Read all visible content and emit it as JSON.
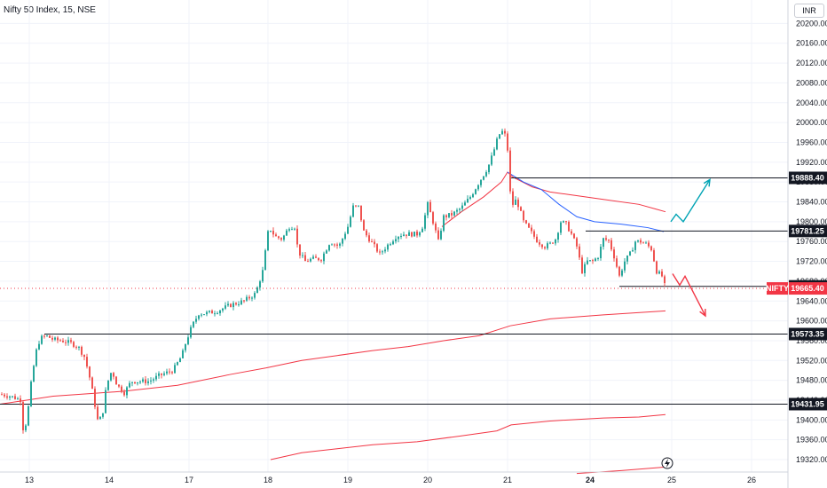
{
  "header": {
    "title": "Nifty 50 Index, 15, NSE"
  },
  "currency": "INR",
  "chart_data": {
    "type": "candlestick",
    "x_axis": {
      "tick_labels": [
        "13",
        "14",
        "17",
        "18",
        "19",
        "20",
        "21",
        "24",
        "25",
        "26"
      ]
    },
    "y_axis": {
      "range": [
        19295,
        20215
      ],
      "tick_labels": [
        "20200.00",
        "20160.00",
        "20120.00",
        "20080.00",
        "20040.00",
        "20000.00",
        "19960.00",
        "19920.00",
        "19880.00",
        "19840.00",
        "19800.00",
        "19760.00",
        "19720.00",
        "19680.00",
        "19640.00",
        "19600.00",
        "19560.00",
        "19520.00",
        "19480.00",
        "19440.00",
        "19400.00",
        "19360.00",
        "19320.00"
      ]
    },
    "close_path": [
      [
        0,
        19452
      ],
      [
        12,
        19448
      ],
      [
        24,
        19440
      ],
      [
        25,
        19380
      ],
      [
        30,
        19395
      ],
      [
        36,
        19488
      ],
      [
        42,
        19550
      ],
      [
        46,
        19565
      ],
      [
        52,
        19570
      ],
      [
        60,
        19562
      ],
      [
        70,
        19560
      ],
      [
        80,
        19555
      ],
      [
        88,
        19548
      ],
      [
        95,
        19528
      ],
      [
        100,
        19495
      ],
      [
        105,
        19450
      ],
      [
        110,
        19400
      ],
      [
        115,
        19405
      ],
      [
        120,
        19470
      ],
      [
        126,
        19500
      ],
      [
        132,
        19470
      ],
      [
        140,
        19455
      ],
      [
        148,
        19478
      ],
      [
        158,
        19478
      ],
      [
        168,
        19478
      ],
      [
        180,
        19490
      ],
      [
        195,
        19500
      ],
      [
        205,
        19530
      ],
      [
        210,
        19560
      ],
      [
        216,
        19588
      ],
      [
        224,
        19615
      ],
      [
        232,
        19615
      ],
      [
        245,
        19620
      ],
      [
        260,
        19632
      ],
      [
        275,
        19640
      ],
      [
        288,
        19655
      ],
      [
        296,
        19700
      ],
      [
        303,
        19790
      ],
      [
        310,
        19770
      ],
      [
        318,
        19765
      ],
      [
        326,
        19790
      ],
      [
        332,
        19790
      ],
      [
        336,
        19740
      ],
      [
        344,
        19720
      ],
      [
        352,
        19725
      ],
      [
        362,
        19725
      ],
      [
        372,
        19760
      ],
      [
        382,
        19750
      ],
      [
        392,
        19790
      ],
      [
        398,
        19830
      ],
      [
        404,
        19830
      ],
      [
        410,
        19780
      ],
      [
        418,
        19760
      ],
      [
        428,
        19735
      ],
      [
        438,
        19755
      ],
      [
        446,
        19770
      ],
      [
        454,
        19775
      ],
      [
        462,
        19775
      ],
      [
        470,
        19775
      ],
      [
        476,
        19790
      ],
      [
        482,
        19835
      ],
      [
        488,
        19800
      ],
      [
        494,
        19760
      ],
      [
        500,
        19810
      ],
      [
        510,
        19815
      ],
      [
        520,
        19828
      ],
      [
        530,
        19850
      ],
      [
        540,
        19880
      ],
      [
        550,
        19910
      ],
      [
        556,
        19940
      ],
      [
        562,
        19975
      ],
      [
        568,
        19985
      ],
      [
        572,
        19945
      ],
      [
        576,
        19830
      ],
      [
        582,
        19845
      ],
      [
        590,
        19800
      ],
      [
        598,
        19780
      ],
      [
        606,
        19760
      ],
      [
        614,
        19750
      ],
      [
        620,
        19755
      ],
      [
        626,
        19765
      ],
      [
        632,
        19800
      ],
      [
        638,
        19795
      ],
      [
        644,
        19775
      ],
      [
        650,
        19750
      ],
      [
        656,
        19700
      ],
      [
        662,
        19720
      ],
      [
        668,
        19720
      ],
      [
        674,
        19730
      ],
      [
        680,
        19765
      ],
      [
        686,
        19762
      ],
      [
        692,
        19730
      ],
      [
        698,
        19690
      ],
      [
        704,
        19720
      ],
      [
        710,
        19735
      ],
      [
        716,
        19760
      ],
      [
        722,
        19760
      ],
      [
        728,
        19755
      ],
      [
        734,
        19745
      ],
      [
        740,
        19700
      ],
      [
        746,
        19690
      ],
      [
        750,
        19665
      ]
    ],
    "moving_averages": [
      {
        "color": "#f23645",
        "points": [
          [
            0,
            19432
          ],
          [
            60,
            19448
          ],
          [
            140,
            19458
          ],
          [
            200,
            19470
          ],
          [
            260,
            19492
          ],
          [
            300,
            19505
          ],
          [
            340,
            19520
          ],
          [
            380,
            19530
          ],
          [
            420,
            19540
          ],
          [
            460,
            19548
          ],
          [
            500,
            19560
          ],
          [
            540,
            19570
          ],
          [
            575,
            19590
          ],
          [
            620,
            19604
          ],
          [
            680,
            19612
          ],
          [
            750,
            19620
          ]
        ]
      },
      {
        "color": "#f23645",
        "points": [
          [
            305,
            19320
          ],
          [
            340,
            19334
          ],
          [
            380,
            19342
          ],
          [
            420,
            19350
          ],
          [
            470,
            19356
          ],
          [
            520,
            19368
          ],
          [
            560,
            19378
          ],
          [
            576,
            19390
          ],
          [
            620,
            19398
          ],
          [
            680,
            19404
          ],
          [
            720,
            19406
          ],
          [
            750,
            19411
          ]
        ]
      },
      {
        "color": "#f23645",
        "points": [
          [
            650,
            19292
          ],
          [
            700,
            19298
          ],
          [
            750,
            19305
          ]
        ]
      },
      {
        "color": "#f23645",
        "points": [
          [
            498,
            19790
          ],
          [
            520,
            19820
          ],
          [
            545,
            19850
          ],
          [
            565,
            19880
          ],
          [
            572,
            19900
          ],
          [
            578,
            19890
          ],
          [
            600,
            19870
          ],
          [
            620,
            19860
          ],
          [
            640,
            19855
          ],
          [
            680,
            19845
          ],
          [
            720,
            19835
          ],
          [
            740,
            19825
          ],
          [
            750,
            19820
          ]
        ]
      },
      {
        "color": "#2962ff",
        "points": [
          [
            572,
            19900
          ],
          [
            590,
            19880
          ],
          [
            610,
            19865
          ],
          [
            630,
            19835
          ],
          [
            650,
            19810
          ],
          [
            670,
            19800
          ],
          [
            700,
            19795
          ],
          [
            730,
            19788
          ],
          [
            748,
            19780
          ]
        ]
      }
    ],
    "horizontal_levels": [
      {
        "value": 19888.4,
        "label": "19888.40",
        "x_from": 576
      },
      {
        "value": 19781.25,
        "label": "19781.25",
        "x_from": 660
      },
      {
        "value": 19669.6,
        "label": "19669.60",
        "x_from": 698
      },
      {
        "value": 19573.35,
        "label": "19573.35",
        "x_from": 50
      },
      {
        "value": 19431.95,
        "label": "19431.95",
        "x_from": 0
      }
    ],
    "current_price": {
      "symbol": "NIFTY",
      "value": 19665.4,
      "label": "19665.40"
    },
    "projections": [
      {
        "color": "#00a3b4",
        "points": [
          [
            756,
            19800
          ],
          [
            762,
            19815
          ],
          [
            770,
            19800
          ],
          [
            800,
            19885
          ]
        ]
      },
      {
        "color": "#f23645",
        "points": [
          [
            758,
            19695
          ],
          [
            766,
            19672
          ],
          [
            772,
            19690
          ],
          [
            795,
            19610
          ]
        ]
      }
    ],
    "grid": true,
    "colors": {
      "up": "#26a69a",
      "down": "#ef5350",
      "level": "#131722",
      "grid": "#f0f3fa"
    }
  }
}
